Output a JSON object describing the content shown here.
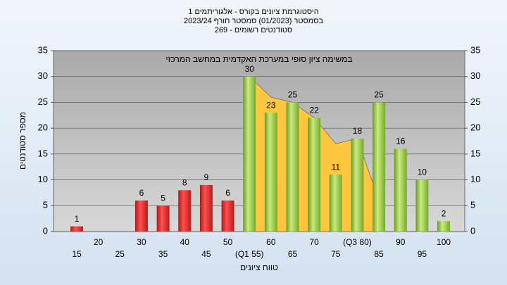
{
  "chart_data": {
    "type": "bar",
    "title": [
      "היסטוגרמת ציונים בקורס - אלגוריתמים 1",
      "בסמסטר (01/2023) סמסטר חורף 2023/24",
      "סטודנטים רשומים - 269"
    ],
    "annotation": "במשימה ציון סופי במערכת האקדמית במחשב המרכזי",
    "x_label": "טווח ציונים",
    "y_label": "מספר סטודנטים",
    "categories": [
      "15",
      "20",
      "25",
      "30",
      "35",
      "40",
      "45",
      "50",
      "(Q1 55)",
      "60",
      "65",
      "70",
      "75",
      "(Q3 80)",
      "85",
      "90",
      "95",
      "100"
    ],
    "values": [
      1,
      0,
      0,
      6,
      5,
      8,
      9,
      6,
      30,
      23,
      25,
      22,
      11,
      18,
      25,
      16,
      10,
      2
    ],
    "colors": [
      "red",
      "red",
      "red",
      "red",
      "red",
      "red",
      "red",
      "red",
      "green",
      "green",
      "green",
      "green",
      "green",
      "green",
      "green",
      "green",
      "green",
      "green"
    ],
    "area": {
      "color": "#ffc640",
      "values": [
        null,
        null,
        null,
        null,
        null,
        null,
        null,
        null,
        30,
        26,
        25,
        22,
        17,
        18,
        6,
        null,
        null,
        null
      ]
    },
    "ylim": [
      0,
      35
    ],
    "yticks": [
      0,
      5,
      10,
      15,
      20,
      25,
      30,
      35
    ],
    "y2lim": [
      0,
      35
    ],
    "y2ticks": [
      0,
      5,
      10,
      15,
      20,
      25,
      30,
      35
    ],
    "grid": true
  }
}
